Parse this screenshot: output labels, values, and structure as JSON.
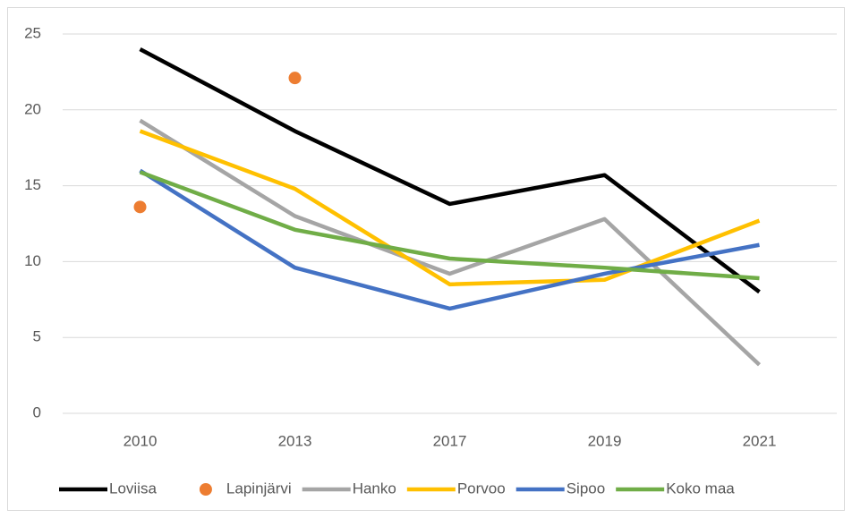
{
  "chart_data": {
    "type": "line",
    "categories": [
      "2010",
      "2013",
      "2017",
      "2019",
      "2021"
    ],
    "series": [
      {
        "name": "Loviisa",
        "color": "#000000",
        "values": [
          24,
          18.6,
          13.8,
          15.7,
          8.0
        ]
      },
      {
        "name": "Lapinjärvi",
        "color": "#ed7d31",
        "style": "markers",
        "values": [
          13.6,
          22.1,
          null,
          null,
          null
        ]
      },
      {
        "name": "Hanko",
        "color": "#a5a5a5",
        "values": [
          19.3,
          13.0,
          9.2,
          12.8,
          3.2
        ]
      },
      {
        "name": "Porvoo",
        "color": "#ffc000",
        "values": [
          18.6,
          14.8,
          8.5,
          8.8,
          12.7
        ]
      },
      {
        "name": "Sipoo",
        "color": "#4472c4",
        "values": [
          16.0,
          9.6,
          6.9,
          9.2,
          11.1
        ]
      },
      {
        "name": "Koko maa",
        "color": "#70ad47",
        "values": [
          15.9,
          12.1,
          10.2,
          9.6,
          8.9
        ]
      }
    ],
    "ylim": [
      0,
      25
    ],
    "yticks": [
      0,
      5,
      10,
      15,
      20,
      25
    ],
    "grid": true,
    "legend": "bottom"
  }
}
